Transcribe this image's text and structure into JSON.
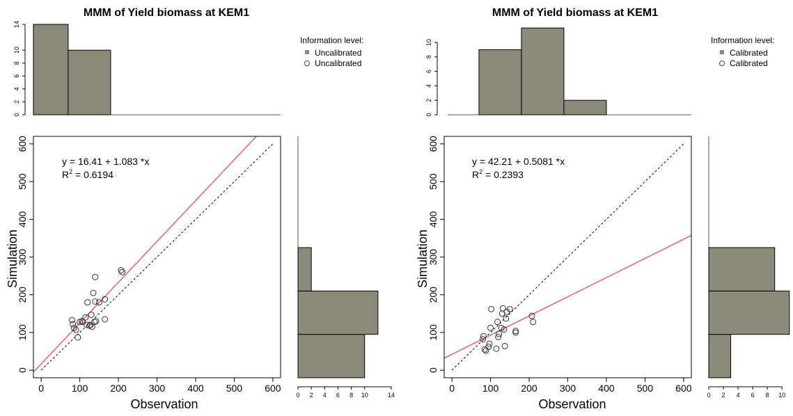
{
  "colors": {
    "bar_fill": "#8b8a79",
    "fit_line": "#ff3c3c",
    "one_to_one": "#000000",
    "axes": "#000000"
  },
  "chart_data": [
    {
      "type": "scatter",
      "title": "MMM of  Yield biomass  at  KEM1",
      "xlabel": "Observation",
      "ylabel": "Simulation",
      "xlim": [
        -20,
        620
      ],
      "ylim": [
        -20,
        620
      ],
      "xticks": [
        "0",
        "100",
        "200",
        "300",
        "400",
        "500",
        "600"
      ],
      "yticks": [
        "0",
        "100",
        "200",
        "300",
        "400",
        "500",
        "600"
      ],
      "grid": false,
      "legend_title": "Information level:",
      "legend_entries": [
        "Uncalibrated",
        "Uncalibrated"
      ],
      "equation_text": "y =  16.41 + 1.083 *x",
      "r2_label": "R",
      "r2_value": " = 0.6194",
      "fit": {
        "intercept": 16.41,
        "slope": 1.083
      },
      "points": [
        [
          80,
          133
        ],
        [
          82,
          122
        ],
        [
          85,
          112
        ],
        [
          90,
          107
        ],
        [
          95,
          87
        ],
        [
          100,
          128
        ],
        [
          105,
          130
        ],
        [
          108,
          128
        ],
        [
          115,
          140
        ],
        [
          118,
          120
        ],
        [
          120,
          180
        ],
        [
          125,
          118
        ],
        [
          128,
          120
        ],
        [
          130,
          147
        ],
        [
          132,
          115
        ],
        [
          135,
          205
        ],
        [
          138,
          128
        ],
        [
          140,
          182
        ],
        [
          140,
          247
        ],
        [
          142,
          130
        ],
        [
          150,
          180
        ],
        [
          165,
          188
        ],
        [
          165,
          135
        ],
        [
          207,
          265
        ],
        [
          210,
          260
        ]
      ],
      "top_histogram": {
        "yticks": [
          "0",
          "2",
          "4",
          "6",
          "8",
          "10",
          "14"
        ],
        "ylim": [
          0,
          14
        ],
        "bins": [
          [
            -20,
            70,
            14
          ],
          [
            70,
            180,
            10
          ]
        ]
      },
      "right_histogram": {
        "xticks": [
          "0",
          "2",
          "4",
          "6",
          "8",
          "10",
          "14"
        ],
        "xlim": [
          0,
          14
        ],
        "bins": [
          [
            -20,
            95,
            10
          ],
          [
            95,
            210,
            12
          ],
          [
            210,
            325,
            2
          ]
        ]
      }
    },
    {
      "type": "scatter",
      "title": "MMM of  Yield biomass  at  KEM1",
      "xlabel": "Observation",
      "ylabel": "Simulation",
      "xlim": [
        -20,
        620
      ],
      "ylim": [
        -20,
        620
      ],
      "xticks": [
        "0",
        "100",
        "200",
        "300",
        "400",
        "500",
        "600"
      ],
      "yticks": [
        "0",
        "100",
        "200",
        "300",
        "400",
        "500",
        "600"
      ],
      "grid": false,
      "legend_title": "Information level:",
      "legend_entries": [
        "Calibrated",
        "Calibrated"
      ],
      "equation_text": "y =  42.21 + 0.5081 *x",
      "r2_label": "R",
      "r2_value": " = 0.2393",
      "fit": {
        "intercept": 42.21,
        "slope": 0.5081
      },
      "points": [
        [
          80,
          82
        ],
        [
          82,
          90
        ],
        [
          85,
          55
        ],
        [
          88,
          52
        ],
        [
          95,
          62
        ],
        [
          97,
          70
        ],
        [
          100,
          112
        ],
        [
          102,
          162
        ],
        [
          115,
          57
        ],
        [
          118,
          128
        ],
        [
          120,
          88
        ],
        [
          122,
          96
        ],
        [
          128,
          112
        ],
        [
          130,
          150
        ],
        [
          132,
          164
        ],
        [
          135,
          108
        ],
        [
          137,
          64
        ],
        [
          140,
          137
        ],
        [
          142,
          155
        ],
        [
          150,
          162
        ],
        [
          165,
          100
        ],
        [
          165,
          104
        ],
        [
          207,
          144
        ],
        [
          210,
          128
        ]
      ],
      "top_histogram": {
        "yticks": [
          "0",
          "2",
          "4",
          "6",
          "8",
          "10"
        ],
        "ylim": [
          0,
          12.5
        ],
        "bins": [
          [
            70,
            180,
            9
          ],
          [
            180,
            290,
            12
          ],
          [
            290,
            400,
            2
          ]
        ]
      },
      "right_histogram": {
        "xticks": [
          "0",
          "2",
          "4",
          "6",
          "8",
          "10"
        ],
        "xlim": [
          0,
          11.5
        ],
        "bins": [
          [
            -20,
            95,
            3
          ],
          [
            95,
            210,
            11
          ],
          [
            210,
            325,
            9
          ]
        ]
      }
    }
  ]
}
